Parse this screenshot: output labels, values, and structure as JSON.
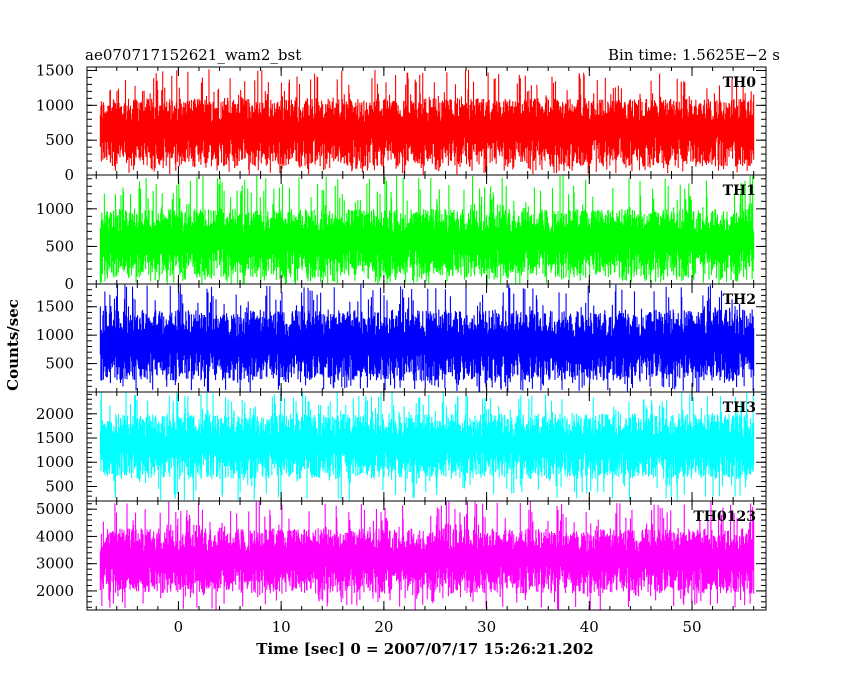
{
  "header": {
    "title": "ae070717152621_wam2_bst",
    "bin_time": "Bin time: 1.5625E−2 s"
  },
  "chart_data": {
    "type": "line",
    "xlabel": "Time [sec] 0 = 2007/07/17 15:26:21.202",
    "ylabel": "Counts/sec",
    "xlim": [
      -8.9,
      57.2
    ],
    "x_ticks": [
      "0",
      "10",
      "20",
      "30",
      "40",
      "50"
    ],
    "x_tick_values": [
      0,
      10,
      20,
      30,
      40,
      50
    ],
    "x_data_range": [
      -7.6,
      56.0
    ],
    "panels": [
      {
        "name": "TH0",
        "color": "#ff0000",
        "ylim": [
          0,
          1550
        ],
        "yticks": [
          0,
          500,
          1000,
          1500
        ],
        "ytick_labels": [
          "0",
          "500",
          "1000",
          "1500"
        ],
        "typical_range": [
          120,
          1100
        ],
        "extreme_range": [
          0,
          1530
        ],
        "median": 600
      },
      {
        "name": "TH1",
        "color": "#00ff00",
        "ylim": [
          0,
          1450
        ],
        "yticks": [
          0,
          500,
          1000
        ],
        "ytick_labels": [
          "0",
          "500",
          "1000"
        ],
        "typical_range": [
          80,
          1000
        ],
        "extreme_range": [
          0,
          1450
        ],
        "median": 540
      },
      {
        "name": "TH2",
        "color": "#0000ff",
        "ylim": [
          0,
          1900
        ],
        "yticks": [
          500,
          1000,
          1500
        ],
        "ytick_labels": [
          "500",
          "1000",
          "1500"
        ],
        "typical_range": [
          200,
          1450
        ],
        "extreme_range": [
          0,
          1900
        ],
        "median": 760
      },
      {
        "name": "TH3",
        "color": "#00ffff",
        "ylim": [
          200,
          2450
        ],
        "yticks": [
          500,
          1000,
          1500,
          2000
        ],
        "ytick_labels": [
          "500",
          "1000",
          "1500",
          "2000"
        ],
        "typical_range": [
          650,
          2000
        ],
        "extreme_range": [
          200,
          2450
        ],
        "median": 1300
      },
      {
        "name": "TH0123",
        "color": "#ff00ff",
        "ylim": [
          1300,
          5300
        ],
        "yticks": [
          2000,
          3000,
          4000,
          5000
        ],
        "ytick_labels": [
          "2000",
          "3000",
          "4000",
          "5000"
        ],
        "typical_range": [
          1900,
          4300
        ],
        "extreme_range": [
          1300,
          5300
        ],
        "median": 3050
      }
    ]
  }
}
